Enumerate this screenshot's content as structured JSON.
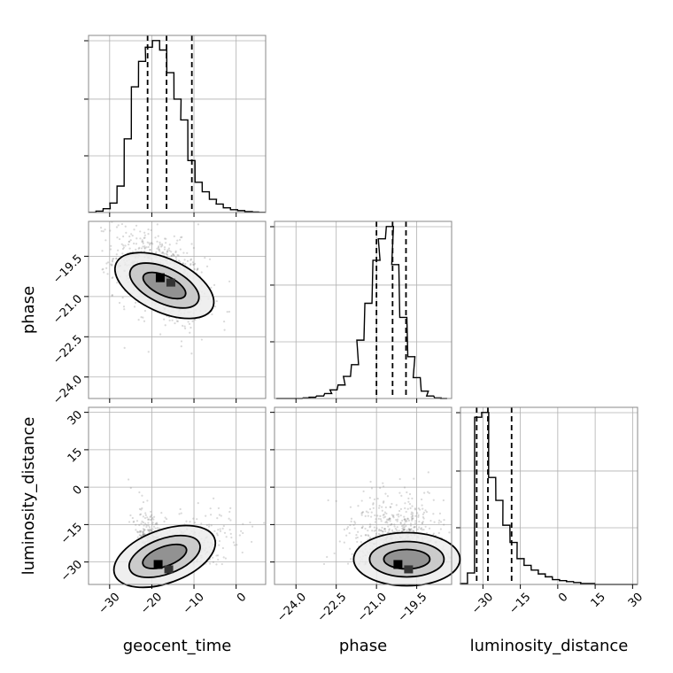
{
  "chart_data": {
    "type": "corner",
    "parameters": [
      "geocent_time",
      "phase",
      "luminosity_distance"
    ],
    "axis_labels": {
      "geocent_time": "geocent_time",
      "phase": "phase",
      "luminosity_distance": "luminosity_distance"
    },
    "ranges": {
      "geocent_time": [
        -35,
        7
      ],
      "phase": [
        -24.8,
        -18.2
      ],
      "luminosity_distance": [
        -39,
        32
      ]
    },
    "ticks": {
      "geocent_time": {
        "values": [
          -30,
          -20,
          -10,
          0
        ],
        "labels": [
          "−30",
          "−20",
          "−10",
          "0"
        ]
      },
      "phase": {
        "values": [
          -24.0,
          -22.5,
          -21.0,
          -19.5
        ],
        "labels": [
          "−24.0",
          "−22.5",
          "−21.0",
          "−19.5"
        ]
      },
      "luminosity_distance": {
        "values": [
          -30,
          -15,
          0,
          15,
          30
        ],
        "labels": [
          "−30",
          "−15",
          "0",
          "15",
          "30"
        ]
      }
    },
    "quantiles": {
      "geocent_time": [
        -21,
        -16.5,
        -10.5
      ],
      "phase": [
        -21.0,
        -20.4,
        -19.9
      ],
      "luminosity_distance": [
        -32.5,
        -28,
        -18.5
      ]
    },
    "histograms": {
      "geocent_time": {
        "x": [
          -34.1,
          -32.4,
          -30.7,
          -29.1,
          -27.4,
          -25.7,
          -24,
          -22.3,
          -20.7,
          -19,
          -17.3,
          -15.6,
          -13.9,
          -12.3,
          -10.6,
          -8.9,
          -7.2,
          -5.5,
          -3.9,
          -2.2,
          -0.5,
          1.2,
          2.9,
          4.5,
          6.2
        ],
        "counts": [
          0.2,
          1.5,
          4,
          10,
          28,
          78,
          133,
          160,
          175,
          182,
          172,
          148,
          120,
          98,
          55,
          32,
          22,
          14,
          9,
          5,
          3,
          2,
          1,
          0.5,
          0.2
        ]
      },
      "phase": {
        "x": [
          -24.6,
          -24.4,
          -24.1,
          -23.9,
          -23.6,
          -23.4,
          -23.1,
          -22.8,
          -22.6,
          -22.3,
          -22.1,
          -21.8,
          -21.6,
          -21.3,
          -21.0,
          -20.8,
          -20.5,
          -20.3,
          -20.0,
          -19.7,
          -19.5,
          -19.2,
          -19.0,
          -18.7,
          -18.5
        ],
        "counts": [
          0,
          0,
          0,
          0,
          1,
          2,
          4,
          8,
          14,
          22,
          36,
          55,
          95,
          155,
          225,
          260,
          280,
          218,
          132,
          68,
          34,
          12,
          4,
          1,
          0
        ]
      },
      "luminosity_distance": {
        "x": [
          -37.6,
          -34.8,
          -31.9,
          -29.1,
          -26.3,
          -23.4,
          -20.6,
          -17.7,
          -14.9,
          -12.1,
          -9.2,
          -6.4,
          -3.6,
          -0.7,
          2.1,
          4.9,
          7.8,
          10.6,
          13.4,
          16.3,
          19.1,
          21.9,
          24.8,
          27.6,
          30.5
        ],
        "counts": [
          1,
          12,
          175,
          180,
          112,
          88,
          62,
          44,
          27,
          20,
          15,
          11,
          8,
          5,
          4,
          3,
          2,
          1,
          1,
          0,
          0,
          0,
          0,
          0,
          0
        ]
      }
    },
    "joint_distributions": [
      {
        "x_param": "geocent_time",
        "y_param": "phase",
        "correlation": -0.45,
        "mode": [
          -18,
          -20.3
        ],
        "density_levels": [
          0.39,
          0.86,
          0.99
        ]
      },
      {
        "x_param": "geocent_time",
        "y_param": "luminosity_distance",
        "correlation": 0.65,
        "mode": [
          -18.5,
          -31
        ],
        "density_levels": [
          0.39,
          0.86,
          0.99
        ]
      },
      {
        "x_param": "phase",
        "y_param": "luminosity_distance",
        "correlation": 0.15,
        "mode": [
          -20.2,
          -31
        ],
        "density_levels": [
          0.39,
          0.86,
          0.99
        ]
      }
    ],
    "grid": true,
    "colors": {
      "line": "#000000",
      "grid": "#b0b0b0",
      "points": "#808080"
    }
  }
}
